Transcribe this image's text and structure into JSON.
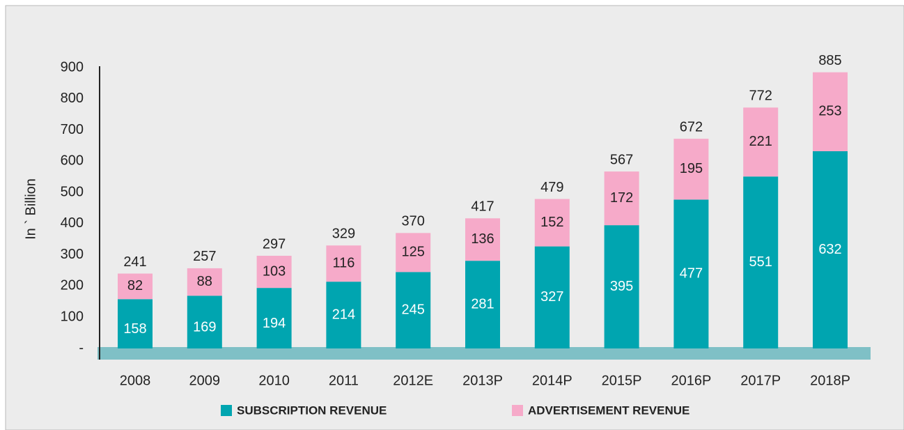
{
  "chart_data": {
    "type": "stacked_bar",
    "y_label": "In ` Billion",
    "categories": [
      "2008",
      "2009",
      "2010",
      "2011",
      "2012E",
      "2013P",
      "2014P",
      "2015P",
      "2016P",
      "2017P",
      "2018P"
    ],
    "series": [
      {
        "name": "SUBSCRIPTION REVENUE",
        "color": "#00a5b0",
        "values": [
          158,
          169,
          194,
          214,
          245,
          281,
          327,
          395,
          477,
          551,
          632
        ]
      },
      {
        "name": "ADVERTISEMENT REVENUE",
        "color": "#f6aac9",
        "values": [
          82,
          88,
          103,
          116,
          125,
          136,
          152,
          172,
          195,
          221,
          253
        ]
      }
    ],
    "totals": [
      241,
      257,
      297,
      329,
      370,
      417,
      479,
      567,
      672,
      772,
      885
    ],
    "ylim": [
      0,
      900
    ],
    "yticks": [
      {
        "value": 0,
        "label": "-"
      },
      100,
      200,
      300,
      400,
      500,
      600,
      700,
      800,
      900
    ]
  }
}
